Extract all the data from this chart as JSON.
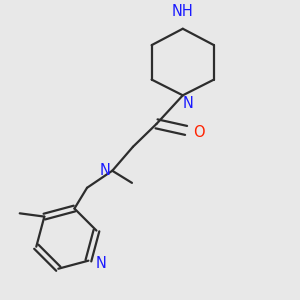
{
  "bg_color": "#e8e8e8",
  "bond_color": "#2d2d2d",
  "N_color": "#1a1aff",
  "O_color": "#ff2200",
  "line_width": 1.6,
  "font_size": 10.5,
  "fig_w": 3.0,
  "fig_h": 3.0,
  "dpi": 100,
  "xlim": [
    0.05,
    0.95
  ],
  "ylim": [
    0.05,
    0.95
  ]
}
